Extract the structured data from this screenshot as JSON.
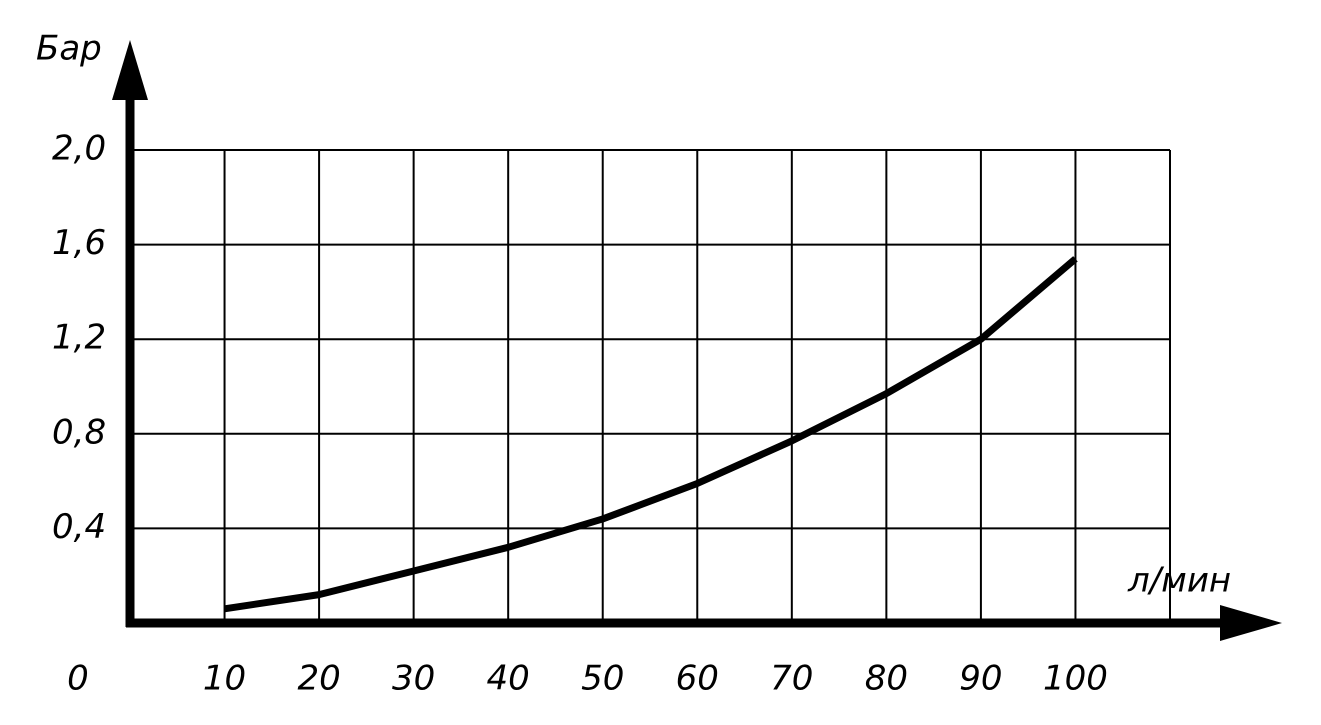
{
  "chart_data": {
    "type": "line",
    "y_label": "Бар",
    "x_label": "л/мин",
    "x": [
      10,
      20,
      30,
      40,
      50,
      60,
      70,
      80,
      90,
      100
    ],
    "series": [
      {
        "color": "#000000",
        "values": [
          0.06,
          0.12,
          0.22,
          0.32,
          0.44,
          0.59,
          0.77,
          0.97,
          1.2,
          1.54
        ]
      }
    ],
    "xlim": [
      0,
      110
    ],
    "ylim": [
      0,
      2.0
    ],
    "xticks": [
      0,
      10,
      20,
      30,
      40,
      50,
      60,
      70,
      80,
      90,
      100
    ],
    "yticks": [
      {
        "value": 0.4,
        "label": "0,4"
      },
      {
        "value": 0.8,
        "label": "0,8"
      },
      {
        "value": 1.2,
        "label": "1,2"
      },
      {
        "value": 1.6,
        "label": "1,6"
      },
      {
        "value": 2.0,
        "label": "2,0"
      }
    ],
    "grid": true
  }
}
